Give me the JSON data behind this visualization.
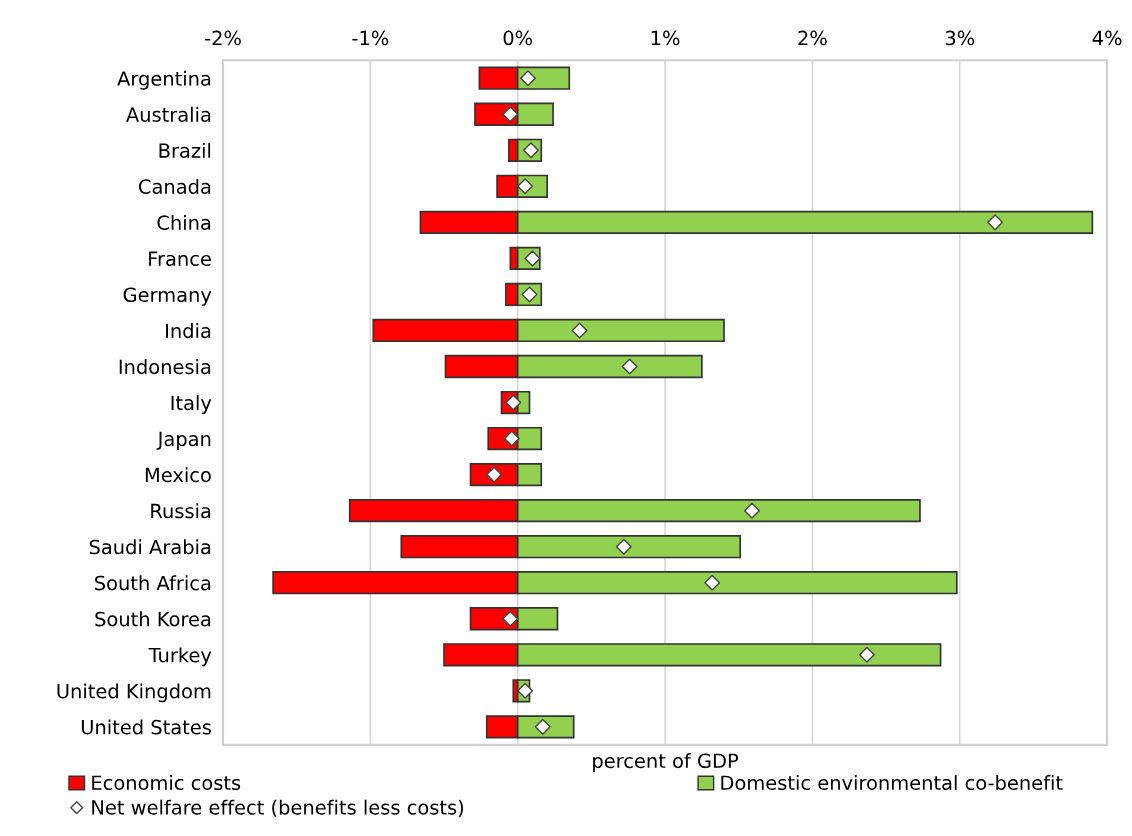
{
  "chart_data": {
    "type": "bar",
    "orientation": "horizontal",
    "stacked": true,
    "xlabel": "percent of GDP",
    "categories": [
      "Argentina",
      "Australia",
      "Brazil",
      "Canada",
      "China",
      "France",
      "Germany",
      "India",
      "Indonesia",
      "Italy",
      "Japan",
      "Mexico",
      "Russia",
      "Saudi Arabia",
      "South Africa",
      "South Korea",
      "Turkey",
      "United Kingdom",
      "United States"
    ],
    "series": [
      {
        "name": "Economic costs",
        "color": "#ff0000",
        "values": [
          -0.26,
          -0.29,
          -0.06,
          -0.14,
          -0.66,
          -0.05,
          -0.08,
          -0.98,
          -0.49,
          -0.11,
          -0.2,
          -0.32,
          -1.14,
          -0.79,
          -1.66,
          -0.32,
          -0.5,
          -0.03,
          -0.21
        ]
      },
      {
        "name": "Domestic environmental co-benefit",
        "color": "#92d050",
        "values": [
          0.35,
          0.24,
          0.16,
          0.2,
          3.9,
          0.15,
          0.16,
          1.4,
          1.25,
          0.08,
          0.16,
          0.16,
          2.73,
          1.51,
          2.98,
          0.27,
          2.87,
          0.08,
          0.38
        ]
      },
      {
        "name": "Net welfare effect (benefits less costs)",
        "type": "scatter",
        "marker": "diamond",
        "color": "#ffffff",
        "values": [
          0.07,
          -0.05,
          0.09,
          0.05,
          3.24,
          0.1,
          0.08,
          0.42,
          0.76,
          -0.03,
          -0.04,
          -0.16,
          1.59,
          0.72,
          1.32,
          -0.05,
          2.37,
          0.05,
          0.17
        ]
      }
    ],
    "xlim": [
      -2,
      4
    ],
    "xticks": [
      {
        "value": -2,
        "label": "-2%"
      },
      {
        "value": -1,
        "label": "-1%"
      },
      {
        "value": 0,
        "label": "0%"
      },
      {
        "value": 1,
        "label": "1%"
      },
      {
        "value": 2,
        "label": "2%"
      },
      {
        "value": 3,
        "label": "3%"
      },
      {
        "value": 4,
        "label": "4%"
      }
    ],
    "grid": "x",
    "legend": "bottom"
  }
}
